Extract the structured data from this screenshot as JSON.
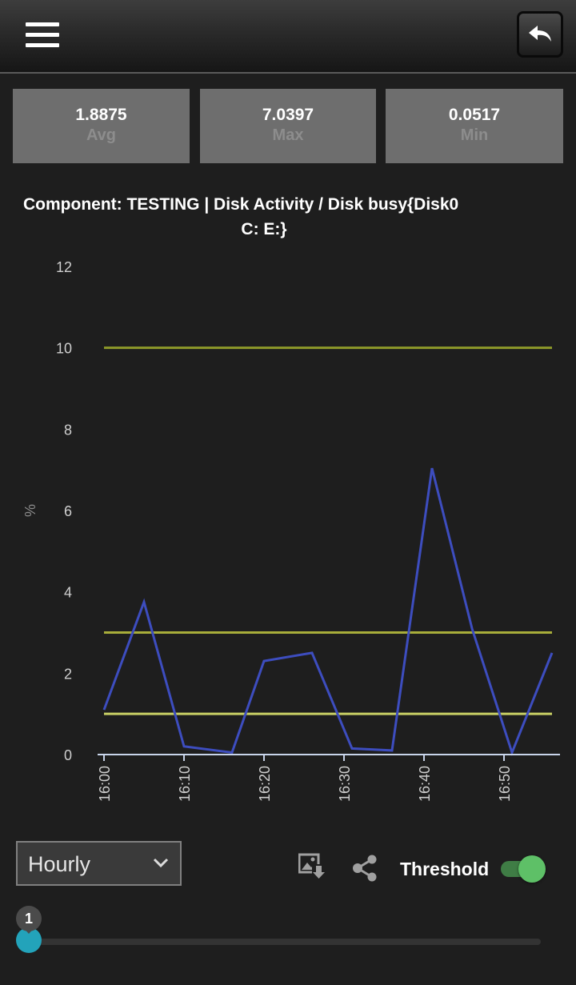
{
  "toolbar": {
    "menu_icon": "hamburger-menu-icon",
    "back_icon": "back-arrow-icon"
  },
  "stats": [
    {
      "value": "1.8875",
      "label": "Avg"
    },
    {
      "value": "7.0397",
      "label": "Max"
    },
    {
      "value": "0.0517",
      "label": "Min"
    }
  ],
  "chart_data": {
    "type": "line",
    "title": "Component: TESTING | Disk Activity / Disk busy{Disk0",
    "title_line2": "C: E:}",
    "ylabel": "%",
    "xlabel": "",
    "ylim": [
      0,
      12
    ],
    "yticks": [
      "0",
      "2",
      "4",
      "6",
      "8",
      "10",
      "12"
    ],
    "x_tick_labels": [
      "16:00",
      "16:10",
      "16:20",
      "16:30",
      "16:40",
      "16:50"
    ],
    "grid": false,
    "series": [
      {
        "color": "#3d4dbf",
        "x": [
          "16:00",
          "16:05",
          "16:10",
          "16:16",
          "16:20",
          "16:26",
          "16:31",
          "16:36",
          "16:41",
          "16:46",
          "16:51",
          "16:56"
        ],
        "values": [
          1.1,
          3.75,
          0.2,
          0.05,
          2.3,
          2.5,
          0.15,
          0.1,
          7.04,
          3.1,
          0.05,
          2.5
        ]
      }
    ],
    "thresholds": [
      {
        "value": 10,
        "color": "#8f9a2a"
      },
      {
        "value": 3,
        "color": "#a8ad3a"
      },
      {
        "value": 1,
        "color": "#c9d065"
      }
    ],
    "axis_color": "#c8d4ea"
  },
  "controls": {
    "period": {
      "selected": "Hourly"
    },
    "download_icon": "image-download-icon",
    "share_icon": "share-icon",
    "threshold_label": "Threshold",
    "threshold_enabled": true,
    "slider": {
      "value": "1",
      "fraction": 0.0
    }
  }
}
